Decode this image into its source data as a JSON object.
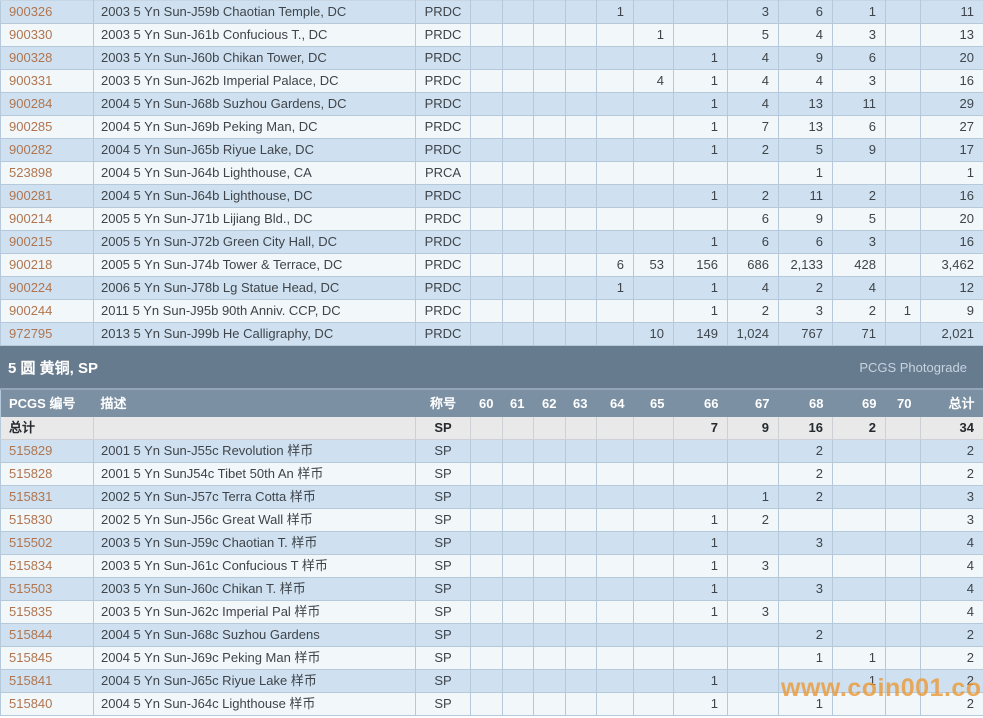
{
  "columns": {
    "id_header": "PCGS 编号",
    "desc_header": "描述",
    "desig_header": "称号",
    "grades": [
      "60",
      "61",
      "62",
      "63",
      "64",
      "65",
      "66",
      "67",
      "68",
      "69",
      "70"
    ],
    "total_header": "总计"
  },
  "top_table": {
    "rows": [
      {
        "id": "900326",
        "desc": "2003 5 Yn Sun-J59b Chaotian Temple, DC",
        "desig": "PRDC",
        "grades": {
          "64": "1",
          "67": "3",
          "68": "6",
          "69": "1"
        },
        "total": "11"
      },
      {
        "id": "900330",
        "desc": "2003 5 Yn Sun-J61b Confucious T., DC",
        "desig": "PRDC",
        "grades": {
          "65": "1",
          "67": "5",
          "68": "4",
          "69": "3"
        },
        "total": "13"
      },
      {
        "id": "900328",
        "desc": "2003 5 Yn Sun-J60b Chikan Tower, DC",
        "desig": "PRDC",
        "grades": {
          "66": "1",
          "67": "4",
          "68": "9",
          "69": "6"
        },
        "total": "20"
      },
      {
        "id": "900331",
        "desc": "2003 5 Yn Sun-J62b Imperial Palace, DC",
        "desig": "PRDC",
        "grades": {
          "65": "4",
          "66": "1",
          "67": "4",
          "68": "4",
          "69": "3"
        },
        "total": "16"
      },
      {
        "id": "900284",
        "desc": "2004 5 Yn Sun-J68b Suzhou Gardens, DC",
        "desig": "PRDC",
        "grades": {
          "66": "1",
          "67": "4",
          "68": "13",
          "69": "11"
        },
        "total": "29"
      },
      {
        "id": "900285",
        "desc": "2004 5 Yn Sun-J69b Peking Man, DC",
        "desig": "PRDC",
        "grades": {
          "66": "1",
          "67": "7",
          "68": "13",
          "69": "6"
        },
        "total": "27"
      },
      {
        "id": "900282",
        "desc": "2004 5 Yn Sun-J65b Riyue Lake, DC",
        "desig": "PRDC",
        "grades": {
          "66": "1",
          "67": "2",
          "68": "5",
          "69": "9"
        },
        "total": "17"
      },
      {
        "id": "523898",
        "desc": "2004 5 Yn Sun-J64b Lighthouse, CA",
        "desig": "PRCA",
        "grades": {
          "68": "1"
        },
        "total": "1"
      },
      {
        "id": "900281",
        "desc": "2004 5 Yn Sun-J64b Lighthouse, DC",
        "desig": "PRDC",
        "grades": {
          "66": "1",
          "67": "2",
          "68": "11",
          "69": "2"
        },
        "total": "16"
      },
      {
        "id": "900214",
        "desc": "2005 5 Yn Sun-J71b Lijiang Bld., DC",
        "desig": "PRDC",
        "grades": {
          "67": "6",
          "68": "9",
          "69": "5"
        },
        "total": "20"
      },
      {
        "id": "900215",
        "desc": "2005 5 Yn Sun-J72b Green City Hall, DC",
        "desig": "PRDC",
        "grades": {
          "66": "1",
          "67": "6",
          "68": "6",
          "69": "3"
        },
        "total": "16"
      },
      {
        "id": "900218",
        "desc": "2005 5 Yn Sun-J74b Tower & Terrace, DC",
        "desig": "PRDC",
        "grades": {
          "64": "6",
          "65": "53",
          "66": "156",
          "67": "686",
          "68": "2,133",
          "69": "428"
        },
        "total": "3,462"
      },
      {
        "id": "900224",
        "desc": "2006 5 Yn Sun-J78b Lg Statue Head, DC",
        "desig": "PRDC",
        "grades": {
          "64": "1",
          "66": "1",
          "67": "4",
          "68": "2",
          "69": "4"
        },
        "total": "12"
      },
      {
        "id": "900244",
        "desc": "2011 5 Yn Sun-J95b 90th Anniv. CCP, DC",
        "desig": "PRDC",
        "grades": {
          "66": "1",
          "67": "2",
          "68": "3",
          "69": "2",
          "70": "1"
        },
        "total": "9"
      },
      {
        "id": "972795",
        "desc": "2013 5 Yn Sun-J99b He Calligraphy, DC",
        "desig": "PRDC",
        "grades": {
          "65": "10",
          "66": "149",
          "67": "1,024",
          "68": "767",
          "69": "71"
        },
        "total": "2,021"
      }
    ]
  },
  "section": {
    "title": "5 圆 黄铜, SP",
    "right_label": "PCGS Photograde"
  },
  "sp_table": {
    "summary": {
      "label": "总计",
      "desc": "",
      "desig": "SP",
      "grades": {
        "66": "7",
        "67": "9",
        "68": "16",
        "69": "2"
      },
      "total": "34"
    },
    "rows": [
      {
        "id": "515829",
        "desc": "2001 5 Yn Sun-J55c Revolution 样币",
        "desig": "SP",
        "grades": {
          "68": "2"
        },
        "total": "2"
      },
      {
        "id": "515828",
        "desc": "2001 5 Yn SunJ54c Tibet 50th An 样币",
        "desig": "SP",
        "grades": {
          "68": "2"
        },
        "total": "2"
      },
      {
        "id": "515831",
        "desc": "2002 5 Yn Sun-J57c Terra Cotta 样币",
        "desig": "SP",
        "grades": {
          "67": "1",
          "68": "2"
        },
        "total": "3"
      },
      {
        "id": "515830",
        "desc": "2002 5 Yn Sun-J56c Great Wall 样币",
        "desig": "SP",
        "grades": {
          "66": "1",
          "67": "2"
        },
        "total": "3"
      },
      {
        "id": "515502",
        "desc": "2003 5 Yn Sun-J59c Chaotian T. 样币",
        "desig": "SP",
        "grades": {
          "66": "1",
          "68": "3"
        },
        "total": "4"
      },
      {
        "id": "515834",
        "desc": "2003 5 Yn Sun-J61c Confucious T 样币",
        "desig": "SP",
        "grades": {
          "66": "1",
          "67": "3"
        },
        "total": "4"
      },
      {
        "id": "515503",
        "desc": "2003 5 Yn Sun-J60c Chikan T. 样币",
        "desig": "SP",
        "grades": {
          "66": "1",
          "68": "3"
        },
        "total": "4"
      },
      {
        "id": "515835",
        "desc": "2003 5 Yn Sun-J62c Imperial Pal 样币",
        "desig": "SP",
        "grades": {
          "66": "1",
          "67": "3"
        },
        "total": "4"
      },
      {
        "id": "515844",
        "desc": "2004 5 Yn Sun-J68c Suzhou Gardens",
        "desig": "SP",
        "grades": {
          "68": "2"
        },
        "total": "2"
      },
      {
        "id": "515845",
        "desc": "2004 5 Yn Sun-J69c Peking Man 样币",
        "desig": "SP",
        "grades": {
          "68": "1",
          "69": "1"
        },
        "total": "2"
      },
      {
        "id": "515841",
        "desc": "2004 5 Yn Sun-J65c Riyue Lake 样币",
        "desig": "SP",
        "grades": {
          "66": "1",
          "69": "1"
        },
        "total": "2"
      },
      {
        "id": "515840",
        "desc": "2004 5 Yn Sun-J64c Lighthouse 样币",
        "desig": "SP",
        "grades": {
          "66": "1",
          "68": "1"
        },
        "total": "2"
      }
    ]
  },
  "watermark": "www.coin001.com",
  "colors": {
    "row_blue": "#cfe1f0",
    "row_light": "#f2f7fa",
    "grid": "#b5c9da",
    "band_bg": "#677b8f",
    "header_bg": "#7b90a3",
    "summary_bg": "#e9e9e9",
    "id_color": "#b0754f",
    "text_color": "#3f444a"
  }
}
